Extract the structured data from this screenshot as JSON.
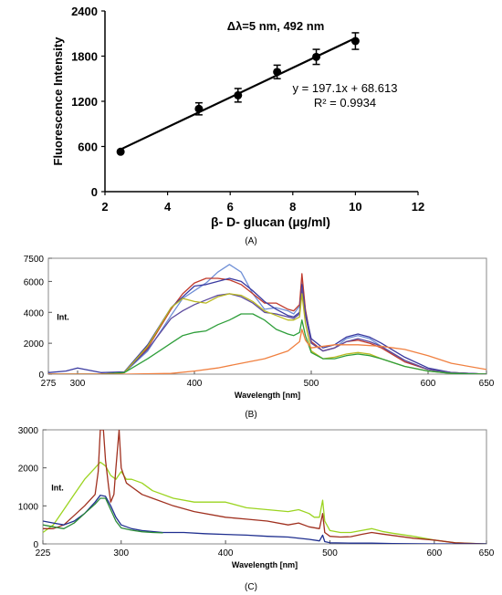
{
  "chart_data": [
    {
      "panel": "(A)",
      "type": "scatter",
      "title": "Δλ=5 nm, 492 nm",
      "xlabel": "β- D- glucan (µg/ml)",
      "ylabel": "Fluorescence Intensity",
      "xlim": [
        2,
        12
      ],
      "ylim": [
        0,
        2400
      ],
      "xticks": [
        "2",
        "4",
        "6",
        "8",
        "10",
        "12"
      ],
      "yticks": [
        "0",
        "600",
        "1200",
        "1800",
        "2400"
      ],
      "x": [
        2.5,
        5,
        6.25,
        7.5,
        8.75,
        10
      ],
      "y": [
        530,
        1100,
        1280,
        1590,
        1790,
        2000
      ],
      "err": [
        0,
        80,
        90,
        90,
        100,
        110
      ],
      "fit_equation": "y = 197.1x + 68.613",
      "r_squared": "R² = 0.9934",
      "fit": {
        "slope": 197.1,
        "intercept": 68.613
      },
      "grid": false
    },
    {
      "panel": "(B)",
      "type": "line",
      "xlabel": "Wavelength [nm]",
      "ylabel": "Int.",
      "xlim": [
        275,
        650
      ],
      "ylim": [
        0,
        7500
      ],
      "xticks": [
        "275",
        "300",
        "400",
        "500",
        "600",
        "650"
      ],
      "yticks": [
        "0",
        "2000",
        "4000",
        "6000",
        "7500"
      ],
      "series": [
        {
          "color": "#6f8fd6",
          "x": [
            275,
            290,
            300,
            320,
            340,
            360,
            380,
            390,
            400,
            410,
            420,
            430,
            440,
            450,
            460,
            470,
            480,
            485,
            490,
            492,
            495,
            500,
            510,
            520,
            530,
            540,
            550,
            560,
            580,
            600,
            620,
            650
          ],
          "y": [
            0,
            0,
            0,
            0,
            100,
            1500,
            3800,
            4900,
            5400,
            5900,
            6600,
            7100,
            6600,
            5200,
            4200,
            4300,
            4100,
            3900,
            4400,
            6200,
            4100,
            2100,
            1500,
            1700,
            2300,
            2500,
            2300,
            1800,
            800,
            300,
            100,
            0
          ]
        },
        {
          "color": "#c0392b",
          "x": [
            275,
            290,
            300,
            320,
            340,
            360,
            380,
            390,
            400,
            410,
            420,
            430,
            440,
            450,
            460,
            470,
            480,
            485,
            490,
            492,
            495,
            500,
            510,
            520,
            530,
            540,
            550,
            560,
            580,
            600,
            620,
            650
          ],
          "y": [
            0,
            0,
            0,
            0,
            100,
            1700,
            4200,
            5200,
            5900,
            6200,
            6200,
            6100,
            5800,
            5200,
            4600,
            4600,
            4200,
            4100,
            4500,
            6500,
            4200,
            2100,
            1500,
            1700,
            2100,
            2200,
            2000,
            1700,
            800,
            300,
            100,
            0
          ]
        },
        {
          "color": "#3a3aa0",
          "x": [
            275,
            290,
            300,
            320,
            340,
            360,
            380,
            390,
            400,
            410,
            420,
            430,
            440,
            450,
            460,
            470,
            480,
            485,
            490,
            492,
            495,
            500,
            510,
            520,
            530,
            540,
            550,
            560,
            580,
            600,
            620,
            650
          ],
          "y": [
            100,
            200,
            400,
            100,
            150,
            1900,
            4300,
            5000,
            5700,
            5800,
            6000,
            6200,
            6000,
            5400,
            4700,
            4200,
            3800,
            3700,
            4000,
            5800,
            4000,
            2300,
            1700,
            1900,
            2400,
            2600,
            2400,
            2000,
            1100,
            400,
            100,
            0
          ]
        },
        {
          "color": "#5c4a9e",
          "x": [
            275,
            290,
            300,
            320,
            340,
            360,
            380,
            390,
            400,
            410,
            420,
            430,
            440,
            450,
            460,
            470,
            480,
            485,
            490,
            492,
            495,
            500,
            510,
            520,
            530,
            540,
            550,
            560,
            580,
            600,
            620,
            650
          ],
          "y": [
            0,
            0,
            0,
            0,
            100,
            1600,
            3600,
            4100,
            4500,
            4800,
            5100,
            5200,
            5000,
            4600,
            4000,
            3900,
            3700,
            3600,
            3900,
            5600,
            3800,
            2000,
            1500,
            1700,
            2100,
            2300,
            2100,
            1800,
            900,
            300,
            100,
            0
          ]
        },
        {
          "color": "#b9b91f",
          "x": [
            275,
            290,
            300,
            320,
            340,
            360,
            380,
            390,
            400,
            410,
            420,
            430,
            440,
            450,
            460,
            470,
            480,
            485,
            490,
            492,
            495,
            500,
            510,
            520,
            530,
            540,
            550,
            560,
            580,
            600,
            620,
            650
          ],
          "y": [
            0,
            0,
            0,
            0,
            100,
            1800,
            4300,
            4900,
            4700,
            4600,
            5000,
            5200,
            5100,
            4700,
            4100,
            3800,
            3500,
            3500,
            3700,
            5200,
            3300,
            1500,
            1000,
            1100,
            1300,
            1400,
            1300,
            1000,
            500,
            200,
            50,
            0
          ]
        },
        {
          "color": "#2e9e3a",
          "x": [
            275,
            290,
            300,
            320,
            340,
            360,
            380,
            390,
            400,
            410,
            420,
            430,
            440,
            450,
            460,
            470,
            480,
            485,
            490,
            492,
            495,
            500,
            510,
            520,
            530,
            540,
            550,
            560,
            580,
            600,
            620,
            650
          ],
          "y": [
            0,
            0,
            0,
            0,
            100,
            1000,
            2000,
            2500,
            2700,
            2800,
            3200,
            3500,
            3900,
            3900,
            3500,
            2900,
            2600,
            2500,
            2700,
            3500,
            2500,
            1400,
            1000,
            1000,
            1200,
            1300,
            1200,
            1000,
            500,
            200,
            50,
            0
          ]
        },
        {
          "color": "#f08040",
          "x": [
            275,
            300,
            340,
            380,
            400,
            420,
            440,
            460,
            480,
            490,
            492,
            495,
            500,
            520,
            540,
            560,
            570,
            580,
            600,
            620,
            650
          ],
          "y": [
            0,
            0,
            0,
            50,
            200,
            400,
            700,
            1000,
            1500,
            2100,
            2900,
            2200,
            1700,
            1900,
            1900,
            1800,
            1700,
            1600,
            1200,
            700,
            300
          ]
        }
      ]
    },
    {
      "panel": "(C)",
      "type": "line",
      "xlabel": "Wavelength [nm]",
      "ylabel": "Int.",
      "xlim": [
        225,
        650
      ],
      "ylim": [
        0,
        3000
      ],
      "xticks": [
        "225",
        "300",
        "400",
        "500",
        "600",
        "650"
      ],
      "yticks": [
        "0",
        "1000",
        "2000",
        "3000"
      ],
      "series": [
        {
          "color": "#9bd420",
          "x": [
            225,
            235,
            245,
            255,
            265,
            275,
            280,
            285,
            290,
            295,
            300,
            305,
            310,
            320,
            330,
            350,
            370,
            400,
            420,
            440,
            460,
            470,
            480,
            485,
            490,
            493,
            495,
            500,
            510,
            520,
            530,
            540,
            550,
            560,
            580,
            600,
            620,
            640,
            650
          ],
          "y": [
            300,
            500,
            900,
            1300,
            1700,
            2000,
            2150,
            2050,
            1800,
            1700,
            1900,
            1700,
            1700,
            1600,
            1400,
            1200,
            1100,
            1100,
            950,
            900,
            850,
            900,
            800,
            700,
            700,
            1150,
            600,
            350,
            300,
            300,
            350,
            400,
            330,
            280,
            200,
            100,
            30,
            10,
            0
          ]
        },
        {
          "color": "#a0301f",
          "x": [
            225,
            235,
            245,
            255,
            265,
            275,
            278,
            280,
            283,
            285,
            288,
            290,
            293,
            295,
            298,
            300,
            305,
            310,
            320,
            330,
            350,
            370,
            400,
            420,
            440,
            460,
            470,
            480,
            490,
            493,
            495,
            500,
            510,
            520,
            530,
            540,
            550,
            580,
            600,
            620,
            640,
            650
          ],
          "y": [
            400,
            400,
            500,
            750,
            1000,
            1300,
            1900,
            3000,
            3000,
            2200,
            1500,
            1100,
            1300,
            2000,
            3000,
            2000,
            1600,
            1500,
            1300,
            1200,
            1000,
            850,
            700,
            650,
            600,
            500,
            550,
            450,
            400,
            800,
            300,
            200,
            180,
            190,
            250,
            300,
            260,
            150,
            100,
            30,
            10,
            0
          ]
        },
        {
          "color": "#1f2f8f",
          "x": [
            225,
            235,
            245,
            255,
            265,
            275,
            280,
            285,
            290,
            295,
            300,
            310,
            320,
            340,
            360,
            380,
            400,
            420,
            440,
            460,
            480,
            490,
            493,
            495,
            500,
            520,
            540,
            560,
            600,
            650
          ],
          "y": [
            600,
            550,
            500,
            600,
            800,
            1100,
            1280,
            1250,
            1000,
            700,
            500,
            400,
            350,
            300,
            300,
            270,
            250,
            230,
            200,
            180,
            120,
            80,
            230,
            60,
            30,
            20,
            20,
            10,
            0,
            0
          ]
        },
        {
          "color": "#2a8a36",
          "x": [
            225,
            235,
            245,
            255,
            265,
            275,
            280,
            285,
            290,
            295,
            300,
            310,
            320,
            330,
            340
          ],
          "y": [
            500,
            450,
            400,
            550,
            800,
            1050,
            1200,
            1200,
            900,
            600,
            420,
            360,
            320,
            300,
            290
          ]
        }
      ]
    }
  ]
}
